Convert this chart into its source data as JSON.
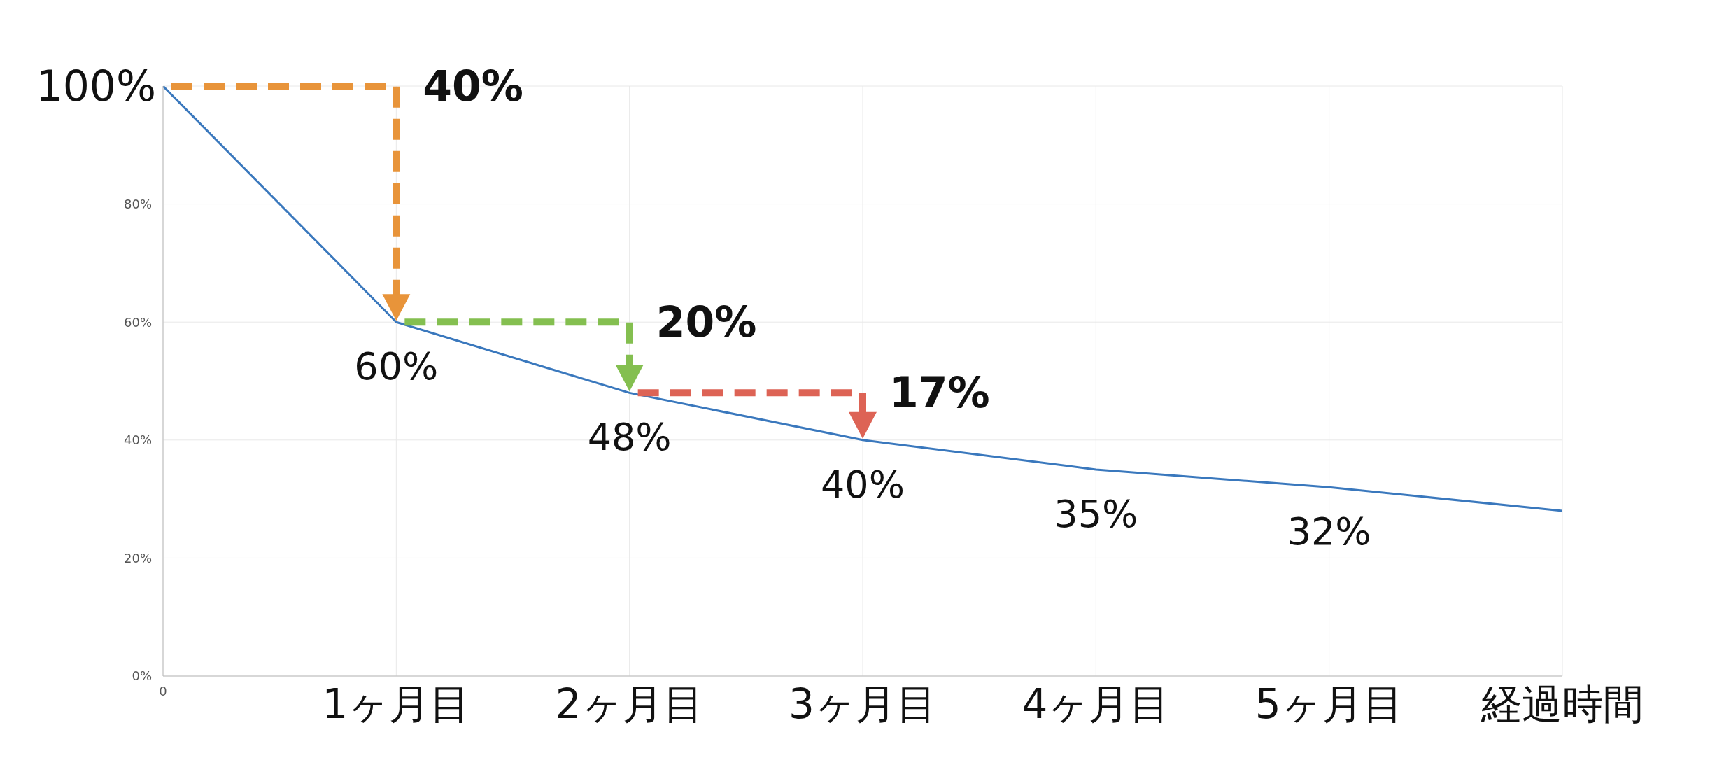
{
  "chart_data": {
    "type": "line",
    "categories": [
      "0",
      "1ヶ月目",
      "2ヶ月目",
      "3ヶ月目",
      "4ヶ月目",
      "5ヶ月目",
      "経過時間"
    ],
    "series": [
      {
        "color": "#3a78bd",
        "values": [
          100,
          60,
          48,
          40,
          35,
          32,
          28
        ],
        "value_labels": [
          "100%",
          "60%",
          "48%",
          "40%",
          "35%",
          "32%",
          null
        ]
      }
    ],
    "ylim": [
      0,
      100
    ],
    "yticks": [
      {
        "value": 0,
        "label": "0%"
      },
      {
        "value": 20,
        "label": "20%"
      },
      {
        "value": 40,
        "label": "40%"
      },
      {
        "value": 60,
        "label": "60%"
      },
      {
        "value": 80,
        "label": "80%"
      },
      {
        "value": 100,
        "label": null
      }
    ],
    "grid": true,
    "marker": "none",
    "line_style": "solid",
    "annotations": [
      "40%",
      "20%",
      "17%"
    ]
  }
}
